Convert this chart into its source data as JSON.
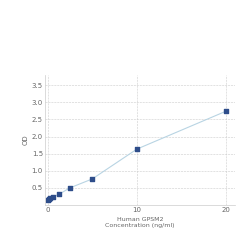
{
  "x": [
    0,
    0.156,
    0.313,
    0.625,
    1.25,
    2.5,
    5,
    10,
    20
  ],
  "y": [
    0.148,
    0.168,
    0.191,
    0.238,
    0.312,
    0.501,
    0.762,
    1.634,
    2.743
  ],
  "xlabel_line1": "Human GPSM2",
  "xlabel_line2": "Concentration (ng/ml)",
  "ylabel": "OD",
  "xlim": [
    -0.3,
    21
  ],
  "ylim": [
    0,
    3.8
  ],
  "yticks": [
    0.5,
    1.0,
    1.5,
    2.0,
    2.5,
    3.0,
    3.5
  ],
  "xticks": [
    0,
    10,
    20
  ],
  "xtick_labels": [
    "0",
    "10",
    "20"
  ],
  "line_color": "#b8d4e3",
  "marker_color": "#2e4d8a",
  "background_color": "#ffffff",
  "grid_color": "#cccccc"
}
